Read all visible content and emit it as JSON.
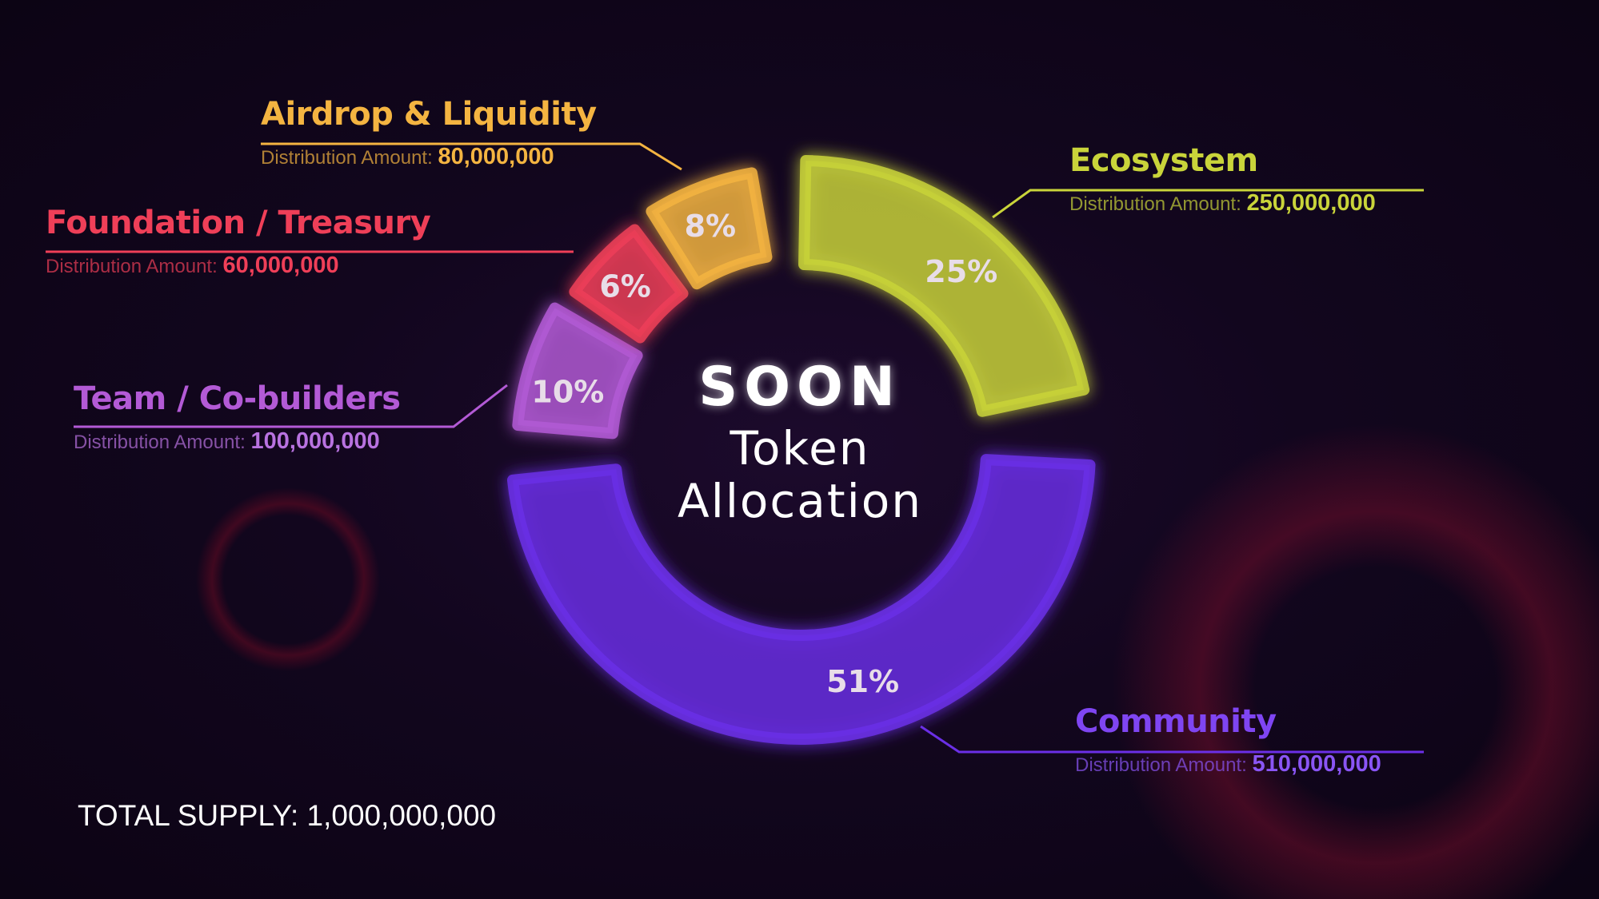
{
  "chart_data": {
    "type": "pie",
    "variant": "donut",
    "center_logo": "SOON",
    "title": "Token Allocation",
    "total_supply_text": "TOTAL SUPPLY: 1,000,000,000",
    "amount_label": "Distribution Amount:",
    "segments": [
      {
        "name": "Ecosystem",
        "percent": 25,
        "percent_label": "25%",
        "amount": "250,000,000",
        "color": "#c9d43a"
      },
      {
        "name": "Community",
        "percent": 51,
        "percent_label": "51%",
        "amount": "510,000,000",
        "color": "#6b2fe6"
      },
      {
        "name": "Team / Co-builders",
        "percent": 10,
        "percent_label": "10%",
        "amount": "100,000,000",
        "color": "#b35ad6"
      },
      {
        "name": "Foundation / Treasury",
        "percent": 6,
        "percent_label": "6%",
        "amount": "60,000,000",
        "color": "#ef3f58"
      },
      {
        "name": "Airdrop & Liquidity",
        "percent": 8,
        "percent_label": "8%",
        "amount": "80,000,000",
        "color": "#f4b441"
      }
    ]
  }
}
